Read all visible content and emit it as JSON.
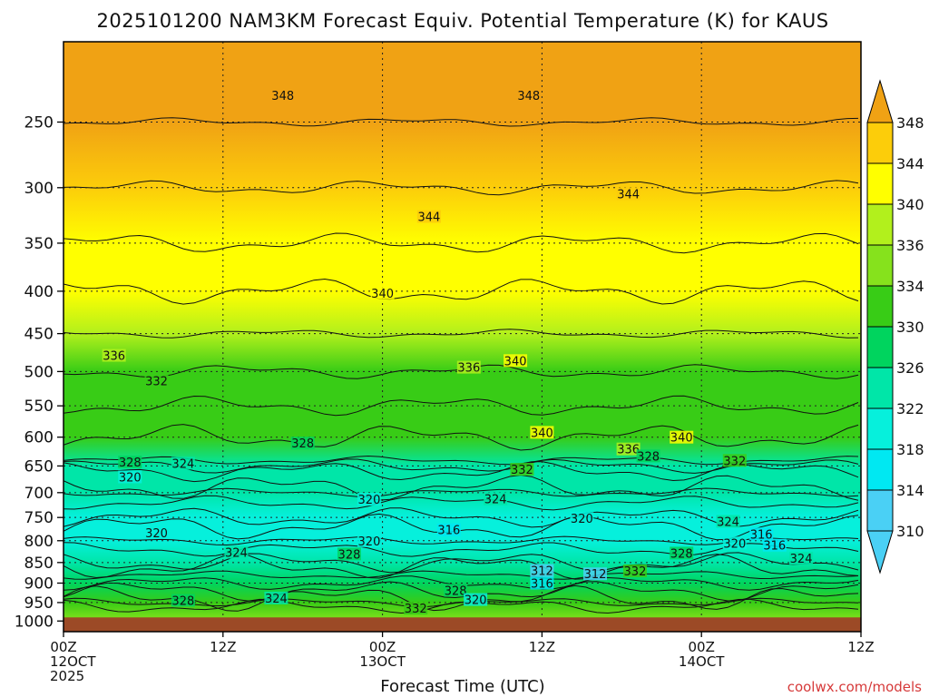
{
  "title": "2025101200 NAM3KM Forecast Equiv. Potential Temperature (K) for KAUS",
  "xlabel": "Forecast Time (UTC)",
  "credit": "coolwx.com/models",
  "chart_data": {
    "type": "heatmap",
    "title": "2025101200 NAM3KM Forecast Equiv. Potential Temperature (K) for KAUS",
    "xlabel": "Forecast Time (UTC)",
    "ylabel": "",
    "x_range_hours": [
      0,
      60
    ],
    "x_ticks": [
      {
        "h": 0,
        "lines": [
          "00Z",
          "12OCT",
          "2025"
        ]
      },
      {
        "h": 12,
        "lines": [
          "12Z"
        ]
      },
      {
        "h": 24,
        "lines": [
          "00Z",
          "13OCT"
        ]
      },
      {
        "h": 36,
        "lines": [
          "12Z"
        ]
      },
      {
        "h": 48,
        "lines": [
          "00Z",
          "14OCT"
        ]
      },
      {
        "h": 60,
        "lines": [
          "12Z"
        ]
      }
    ],
    "y_axis": "pressure (hPa), reversed",
    "y_ticks": [
      250,
      300,
      350,
      400,
      450,
      500,
      550,
      600,
      650,
      700,
      750,
      800,
      850,
      900,
      950,
      1000
    ],
    "y_range": [
      200,
      1030
    ],
    "grid": true,
    "surface_below_hPa": 990,
    "colorbar": {
      "labels": [
        348,
        344,
        340,
        336,
        334,
        330,
        326,
        322,
        318,
        314,
        310
      ],
      "colors": [
        "#f0a214",
        "#fccd0a",
        "#ffff00",
        "#b2f01c",
        "#86e21c",
        "#38cc16",
        "#00d45e",
        "#00e6a8",
        "#06f0dc",
        "#00e8f2",
        "#4ad0f5"
      ],
      "extend": "both"
    },
    "profile": [
      {
        "p": 200,
        "v": 350
      },
      {
        "p": 250,
        "v": 349
      },
      {
        "p": 300,
        "v": 344
      },
      {
        "p": 350,
        "v": 342
      },
      {
        "p": 400,
        "v": 340
      },
      {
        "p": 450,
        "v": 337
      },
      {
        "p": 500,
        "v": 333
      },
      {
        "p": 550,
        "v": 331
      },
      {
        "p": 600,
        "v": 330
      },
      {
        "p": 650,
        "v": 325
      },
      {
        "p": 700,
        "v": 322
      },
      {
        "p": 750,
        "v": 320
      },
      {
        "p": 800,
        "v": 318
      },
      {
        "p": 850,
        "v": 322
      },
      {
        "p": 900,
        "v": 328
      },
      {
        "p": 950,
        "v": 333
      },
      {
        "p": 1000,
        "v": 334
      }
    ],
    "contour_labels": [
      {
        "text": "348",
        "h": 16.5,
        "p": 232
      },
      {
        "text": "348",
        "h": 35,
        "p": 232
      },
      {
        "text": "344",
        "h": 27.5,
        "p": 325
      },
      {
        "text": "344",
        "h": 42.5,
        "p": 305
      },
      {
        "text": "340",
        "h": 24,
        "p": 402
      },
      {
        "text": "340",
        "h": 34,
        "p": 485
      },
      {
        "text": "340",
        "h": 36,
        "p": 592
      },
      {
        "text": "340",
        "h": 46.5,
        "p": 600
      },
      {
        "text": "336",
        "h": 3.8,
        "p": 478
      },
      {
        "text": "336",
        "h": 30.5,
        "p": 494
      },
      {
        "text": "336",
        "h": 42.5,
        "p": 620
      },
      {
        "text": "332",
        "h": 7,
        "p": 513
      },
      {
        "text": "332",
        "h": 34.5,
        "p": 656
      },
      {
        "text": "332",
        "h": 50.5,
        "p": 640
      },
      {
        "text": "332",
        "h": 26.5,
        "p": 965
      },
      {
        "text": "332",
        "h": 43,
        "p": 870
      },
      {
        "text": "328",
        "h": 18,
        "p": 610
      },
      {
        "text": "328",
        "h": 5,
        "p": 643
      },
      {
        "text": "328",
        "h": 44,
        "p": 632
      },
      {
        "text": "328",
        "h": 21.5,
        "p": 830
      },
      {
        "text": "328",
        "h": 9,
        "p": 944
      },
      {
        "text": "328",
        "h": 29.5,
        "p": 918
      },
      {
        "text": "328",
        "h": 46.5,
        "p": 828
      },
      {
        "text": "324",
        "h": 9,
        "p": 645
      },
      {
        "text": "324",
        "h": 32.5,
        "p": 712
      },
      {
        "text": "324",
        "h": 13,
        "p": 826
      },
      {
        "text": "324",
        "h": 16,
        "p": 938
      },
      {
        "text": "324",
        "h": 50,
        "p": 758
      },
      {
        "text": "324",
        "h": 55.5,
        "p": 840
      },
      {
        "text": "320",
        "h": 5,
        "p": 670
      },
      {
        "text": "320",
        "h": 23,
        "p": 713
      },
      {
        "text": "320",
        "h": 7,
        "p": 782
      },
      {
        "text": "320",
        "h": 23,
        "p": 800
      },
      {
        "text": "320",
        "h": 39,
        "p": 752
      },
      {
        "text": "320",
        "h": 31,
        "p": 942
      },
      {
        "text": "320",
        "h": 50.5,
        "p": 805
      },
      {
        "text": "316",
        "h": 29,
        "p": 776
      },
      {
        "text": "316",
        "h": 52.5,
        "p": 785
      },
      {
        "text": "316",
        "h": 36,
        "p": 900
      },
      {
        "text": "316",
        "h": 53.5,
        "p": 810
      },
      {
        "text": "312",
        "h": 36,
        "p": 869
      },
      {
        "text": "312",
        "h": 40,
        "p": 877
      }
    ]
  }
}
